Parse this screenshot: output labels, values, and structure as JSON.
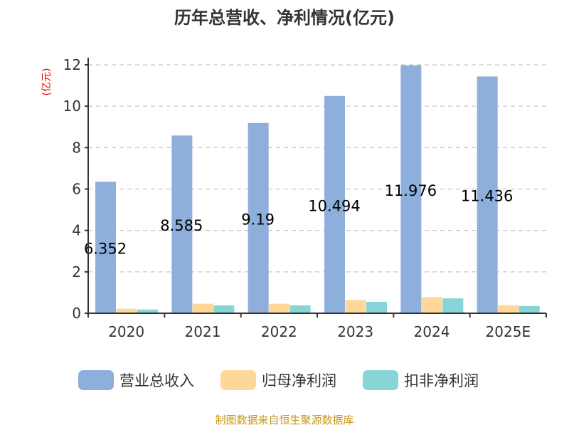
{
  "chart_data": {
    "type": "bar",
    "title": "历年总营收、净利情况(亿元)",
    "ylabel": "(亿元)",
    "categories": [
      "2020",
      "2021",
      "2022",
      "2023",
      "2024",
      "2025E"
    ],
    "ylim": [
      0,
      12
    ],
    "yticks": [
      "0",
      "2",
      "4",
      "6",
      "8",
      "10",
      "12"
    ],
    "grid": true,
    "legend_placement": "bottom",
    "series": [
      {
        "name": "营业总收入",
        "color": "#8eaedb",
        "values": [
          6.352,
          8.585,
          9.19,
          10.494,
          11.976,
          11.436
        ],
        "labels": [
          "6.352",
          "8.585",
          "9.19",
          "10.494",
          "11.976",
          "11.436"
        ]
      },
      {
        "name": "归母净利润",
        "color": "#ffd899",
        "values": [
          0.22,
          0.46,
          0.46,
          0.64,
          0.78,
          0.39
        ]
      },
      {
        "name": "扣非净利润",
        "color": "#88d5d8",
        "values": [
          0.18,
          0.38,
          0.38,
          0.55,
          0.72,
          0.35
        ]
      }
    ]
  },
  "source": "制图数据来自恒生聚源数据库"
}
